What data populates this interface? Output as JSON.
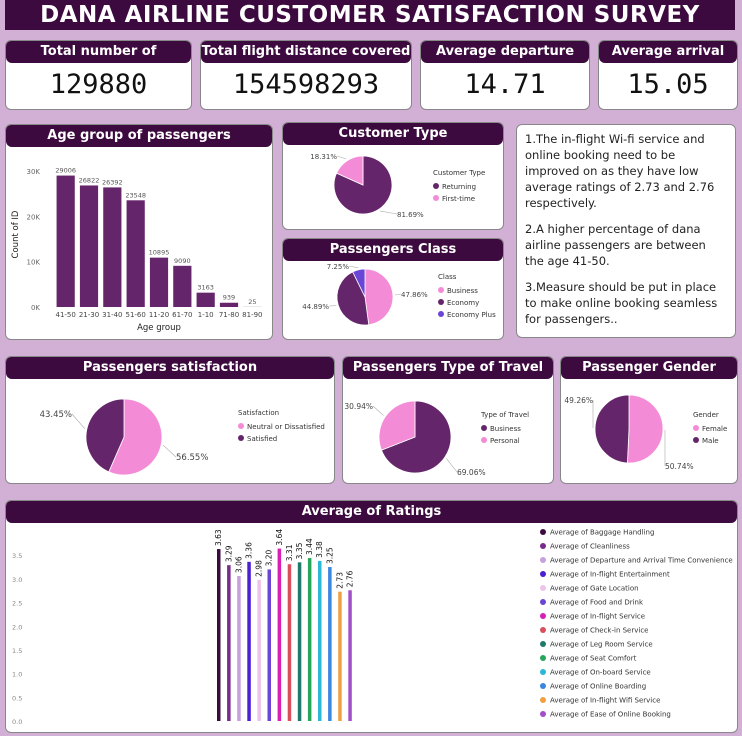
{
  "title": "DANA AIRLINE CUSTOMER SATISFACTION SURVEY",
  "kpis": [
    {
      "label": "Total number of passenger",
      "value": "129880"
    },
    {
      "label": "Total flight distance covered",
      "value": "154598293"
    },
    {
      "label": "Average departure delay",
      "value": "14.71"
    },
    {
      "label": "Average arrival delay",
      "value": "15.05"
    }
  ],
  "notes": [
    "1.The in-flight Wi-fi service and online booking need to  be improved on as they have low average ratings  of 2.73 and 2.76 respectively.",
    "2.A higher percentage of dana airline passengers are between the age 41-50.",
    "3.Measure should be put in place to make online booking seamless for passengers.."
  ],
  "colors": {
    "dark": "#3d0a3f",
    "purple": "#65256b",
    "pink": "#f48bd6",
    "blue": "#6a45d6"
  },
  "chart_data": [
    {
      "id": "age",
      "type": "bar",
      "title": "Age group of passengers",
      "xlabel": "Age group",
      "ylabel": "Count of ID",
      "categories": [
        "41-50",
        "21-30",
        "31-40",
        "51-60",
        "11-20",
        "61-70",
        "1-10",
        "71-80",
        "81-90"
      ],
      "values": [
        29006,
        26822,
        26392,
        23548,
        10895,
        9090,
        3163,
        939,
        25
      ],
      "yticks": [
        "0K",
        "10K",
        "20K",
        "30K"
      ],
      "ylim": [
        0,
        32000
      ],
      "color": "#65256b"
    },
    {
      "id": "customer_type",
      "type": "pie",
      "title": "Customer Type",
      "legend_title": "Customer Type",
      "labels": [
        "Returning",
        "First-time"
      ],
      "values": [
        81.69,
        18.31
      ],
      "value_labels": [
        "81.69%",
        "18.31%"
      ],
      "colors": [
        "#65256b",
        "#f48bd6"
      ]
    },
    {
      "id": "class",
      "type": "pie",
      "title": "Passengers Class",
      "legend_title": "Class",
      "labels": [
        "Business",
        "Economy",
        "Economy Plus"
      ],
      "values": [
        47.86,
        44.89,
        7.25
      ],
      "value_labels": [
        "47.86%",
        "44.89%",
        "7.25%"
      ],
      "colors": [
        "#f48bd6",
        "#65256b",
        "#6a45d6"
      ]
    },
    {
      "id": "satisfaction",
      "type": "pie",
      "title": "Passengers satisfaction",
      "legend_title": "Satisfaction",
      "labels": [
        "Neutral or Dissatisfied",
        "Satisfied"
      ],
      "values": [
        56.55,
        43.45
      ],
      "value_labels": [
        "56.55%",
        "43.45%"
      ],
      "colors": [
        "#f48bd6",
        "#65256b"
      ]
    },
    {
      "id": "travel",
      "type": "pie",
      "title": "Passengers Type of Travel",
      "legend_title": "Type of Travel",
      "labels": [
        "Business",
        "Personal"
      ],
      "values": [
        69.06,
        30.94
      ],
      "value_labels": [
        "69.06%",
        "30.94%"
      ],
      "colors": [
        "#65256b",
        "#f48bd6"
      ]
    },
    {
      "id": "gender",
      "type": "pie",
      "title": "Passenger Gender",
      "legend_title": "Gender",
      "labels": [
        "Female",
        "Male"
      ],
      "values": [
        50.74,
        49.26
      ],
      "value_labels": [
        "50.74%",
        "49.26%"
      ],
      "colors": [
        "#f48bd6",
        "#65256b"
      ]
    },
    {
      "id": "ratings",
      "type": "bar",
      "title": "Average of Ratings",
      "ylim": [
        0,
        3.8
      ],
      "yticks": [
        "0.0",
        "0.5",
        "1.0",
        "1.5",
        "2.0",
        "2.5",
        "3.0",
        "3.5"
      ],
      "series": [
        {
          "name": "Average of Baggage Handling",
          "value": 3.63,
          "color": "#3d0a3f"
        },
        {
          "name": "Average of Cleanliness",
          "value": 3.29,
          "color": "#7a2c8a"
        },
        {
          "name": "Average of Departure and Arrival Time Convenience",
          "value": 3.06,
          "color": "#c7a0dd"
        },
        {
          "name": "Average of In-flight Entertainment",
          "value": 3.36,
          "color": "#4b1fd2"
        },
        {
          "name": "Average of Gate Location",
          "value": 2.98,
          "color": "#eec3ea"
        },
        {
          "name": "Average of Food and Drink",
          "value": 3.2,
          "color": "#6a45d6"
        },
        {
          "name": "Average of In-flight Service",
          "value": 3.64,
          "color": "#d61fb4"
        },
        {
          "name": "Average of Check-in Service",
          "value": 3.31,
          "color": "#d9505c"
        },
        {
          "name": "Average of Leg Room Service",
          "value": 3.35,
          "color": "#1f7a6a"
        },
        {
          "name": "Average of Seat Comfort",
          "value": 3.44,
          "color": "#26a65b"
        },
        {
          "name": "Average of On-board Service",
          "value": 3.38,
          "color": "#2bb8d8"
        },
        {
          "name": "Average of Online Boarding",
          "value": 3.25,
          "color": "#3a86e0"
        },
        {
          "name": "Average of In-flight Wifi Service",
          "value": 2.73,
          "color": "#f0a040"
        },
        {
          "name": "Average of Ease of Online Booking",
          "value": 2.76,
          "color": "#a34fc9"
        }
      ]
    }
  ]
}
